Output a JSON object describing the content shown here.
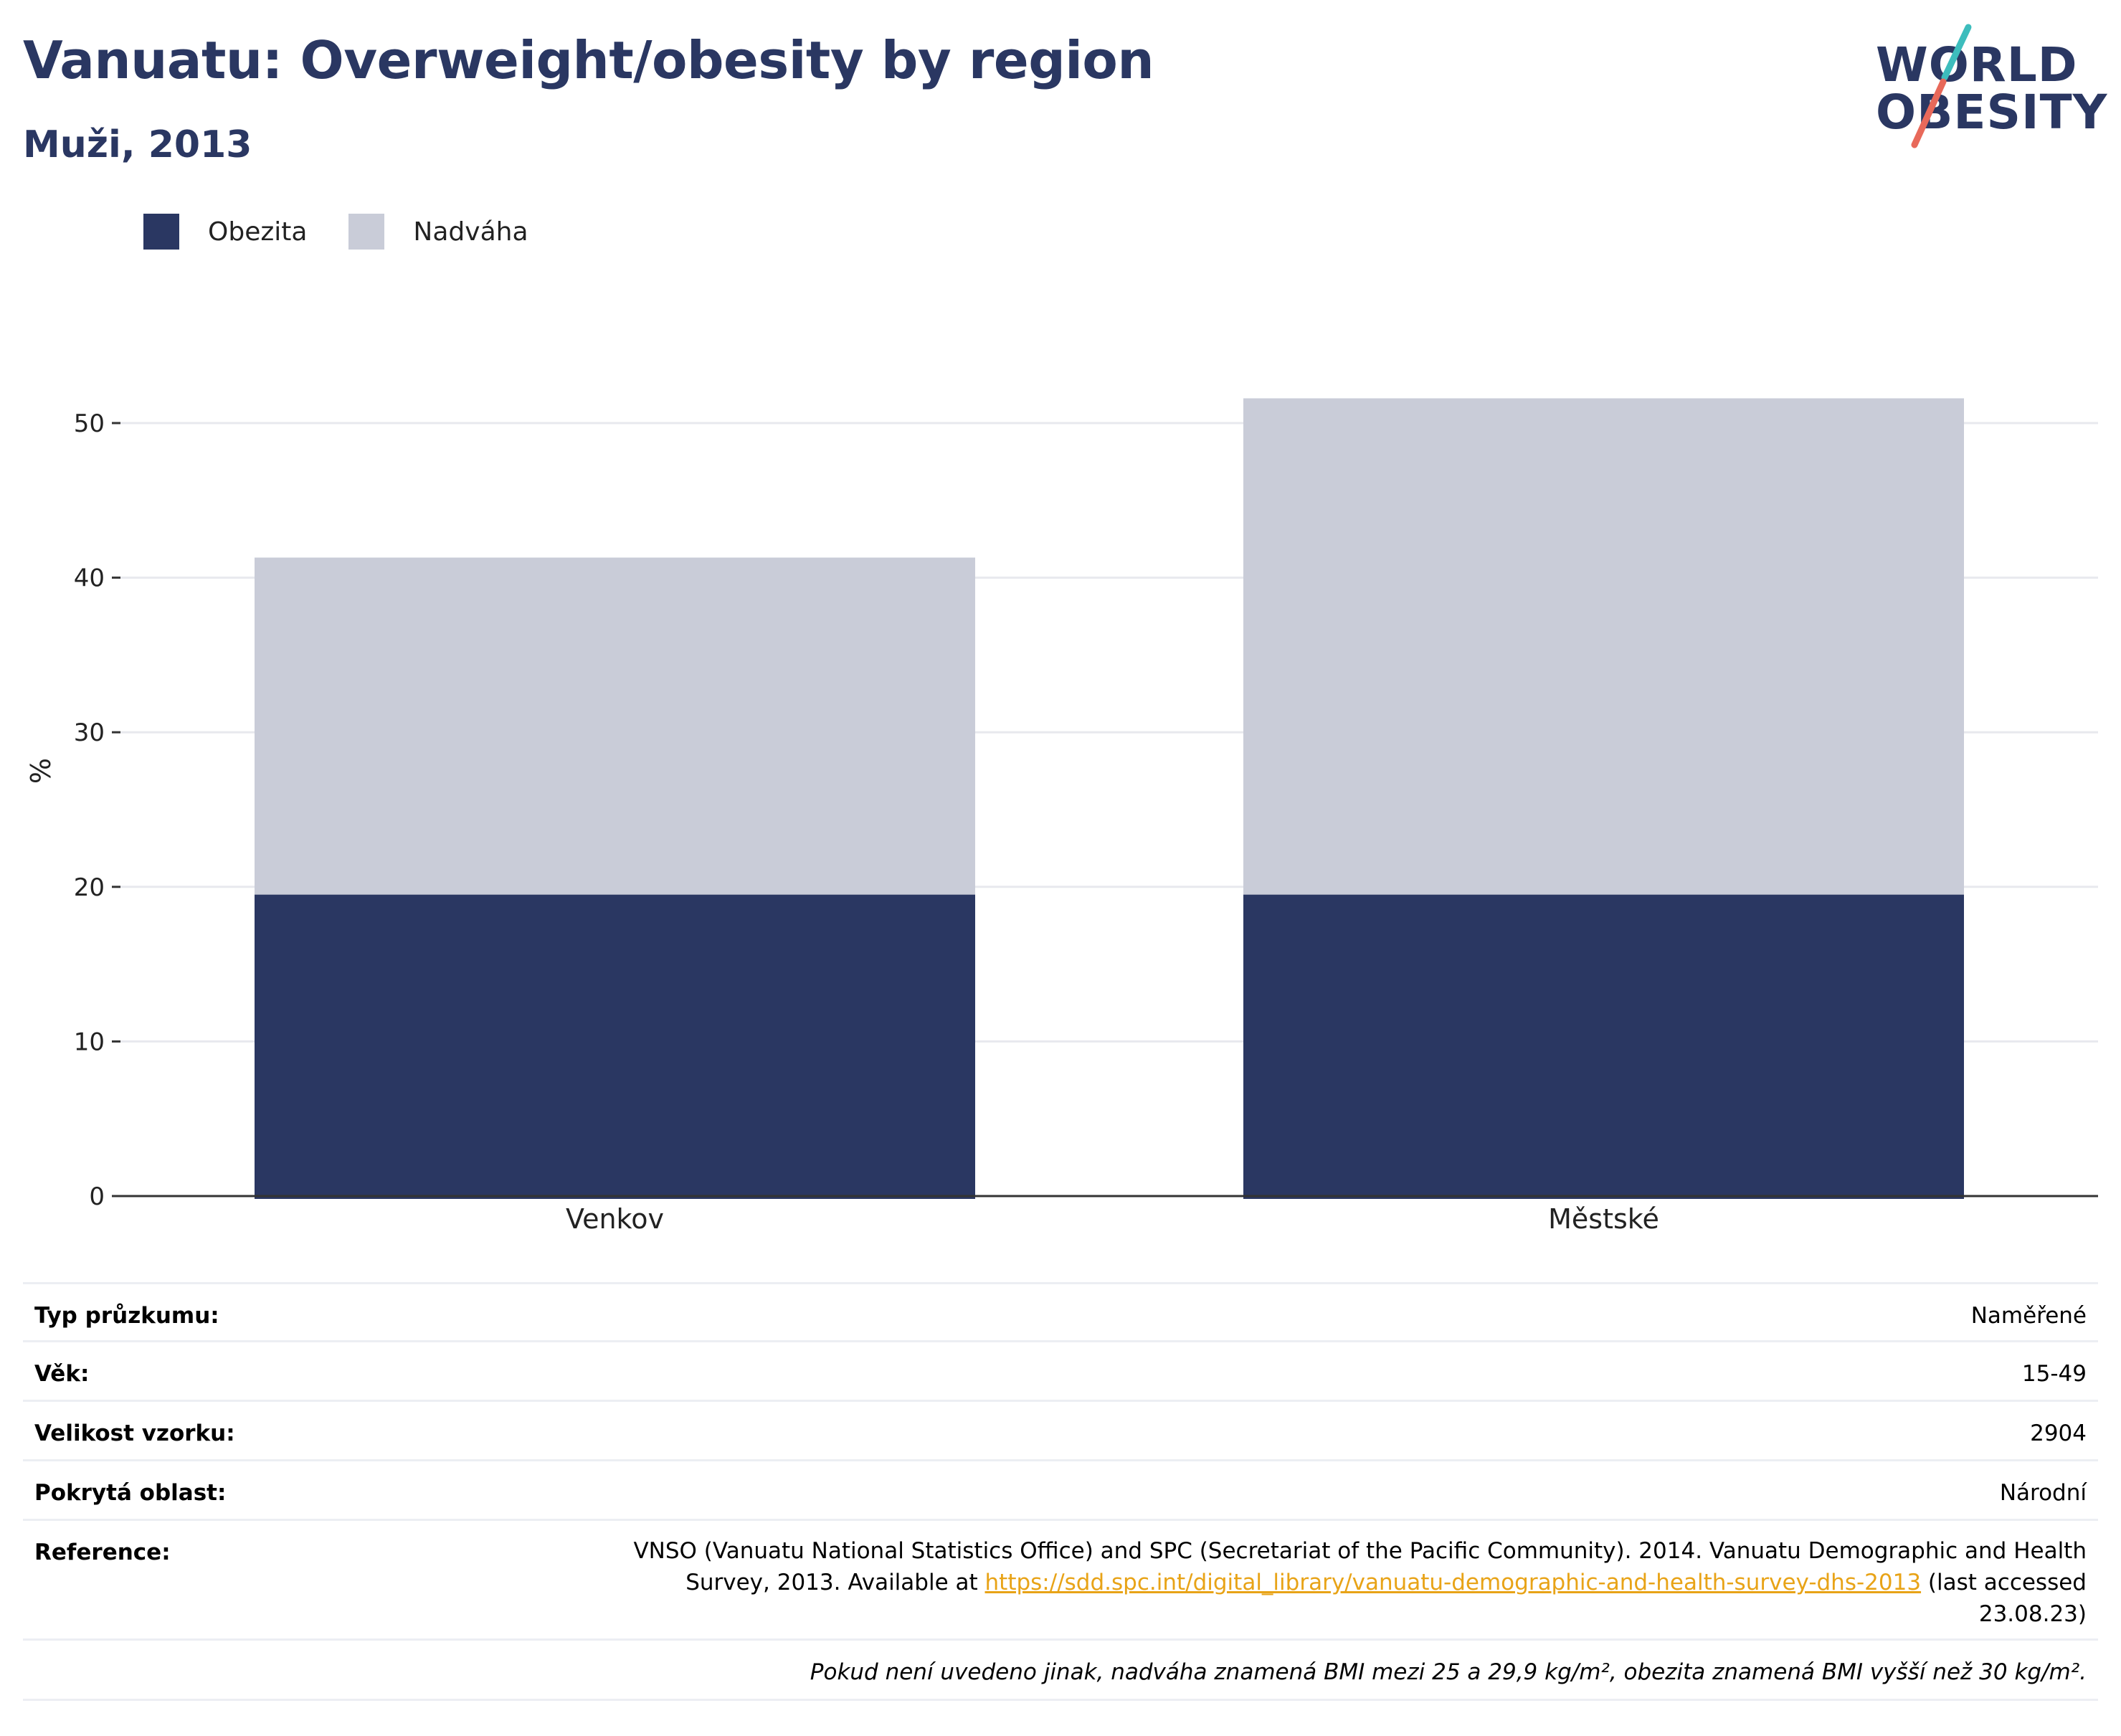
{
  "header": {
    "title": "Vanuatu: Overweight/obesity by region",
    "subtitle": "Muži, 2013"
  },
  "logo": {
    "line1": "WORLD",
    "line2": "OBESITY",
    "colors": {
      "slash_top": "#3dbdbd",
      "slash_bottom": "#e8695a",
      "text": "#2a3762"
    }
  },
  "colors": {
    "obesity": "#2a3762",
    "overweight": "#c9ccd8",
    "grid": "#e8e9ee",
    "axis": "#333333"
  },
  "legend": [
    {
      "label": "Obezita",
      "color": "#2a3762"
    },
    {
      "label": "Nadváha",
      "color": "#c9ccd8"
    }
  ],
  "chart_data": {
    "type": "bar",
    "stacked": true,
    "categories": [
      "Venkov",
      "Městské"
    ],
    "series": [
      {
        "name": "Obezita",
        "values": [
          19.5,
          19.5
        ]
      },
      {
        "name": "Nadváha",
        "values": [
          21.8,
          32.1
        ]
      }
    ],
    "title": "Vanuatu: Overweight/obesity by region",
    "subtitle": "Muži, 2013",
    "xlabel": "",
    "ylabel": "%",
    "ylim": [
      0,
      55
    ],
    "yticks": [
      0,
      10,
      20,
      30,
      40,
      50
    ],
    "grid": true,
    "legend_position": "top-left"
  },
  "info": {
    "survey_type_label": "Typ průzkumu:",
    "survey_type_value": "Naměřené",
    "age_label": "Věk:",
    "age_value": "15-49",
    "sample_label": "Velikost vzorku:",
    "sample_value": "2904",
    "area_label": "Pokrytá oblast:",
    "area_value": "Národní",
    "reference_label": "Reference:",
    "reference_before": "VNSO (Vanuatu National Statistics Office) and SPC (Secretariat of the Pacific Community). 2014. Vanuatu Demographic and Health Survey, 2013. Available at ",
    "reference_link": "https://sdd.spc.int/digital_library/vanuatu-demographic-and-health-survey-dhs-2013",
    "reference_after": " (last accessed 23.08.23)",
    "note": "Pokud není uvedeno jinak, nadváha znamená BMI mezi 25 a 29,9 kg/m², obezita znamená BMI vyšší než 30 kg/m²."
  }
}
